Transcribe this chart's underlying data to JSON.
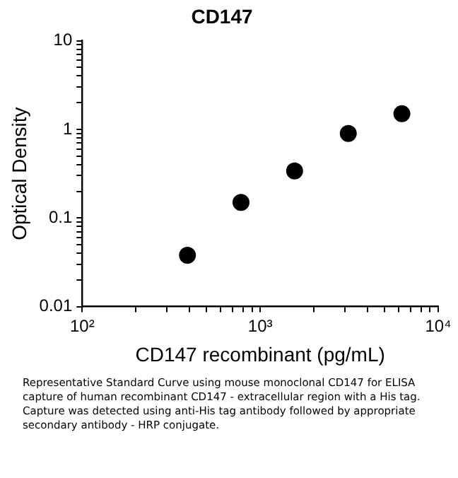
{
  "chart_data": {
    "type": "scatter",
    "title": "CD147",
    "xlabel": "CD147 recombinant (pg/mL)",
    "ylabel": "Optical Density",
    "log": "xy",
    "grid": false,
    "marker": "circle",
    "xlim": [
      100,
      10000
    ],
    "xticks": [
      {
        "value": 100,
        "label": "10²"
      },
      {
        "value": 200,
        "label": null
      },
      {
        "value": 300,
        "label": null
      },
      {
        "value": 400,
        "label": null
      },
      {
        "value": 500,
        "label": null
      },
      {
        "value": 600,
        "label": null
      },
      {
        "value": 700,
        "label": null
      },
      {
        "value": 800,
        "label": null
      },
      {
        "value": 900,
        "label": null
      },
      {
        "value": 1000,
        "label": "10³"
      },
      {
        "value": 2000,
        "label": null
      },
      {
        "value": 3000,
        "label": null
      },
      {
        "value": 4000,
        "label": null
      },
      {
        "value": 5000,
        "label": null
      },
      {
        "value": 6000,
        "label": null
      },
      {
        "value": 7000,
        "label": null
      },
      {
        "value": 8000,
        "label": null
      },
      {
        "value": 9000,
        "label": null
      },
      {
        "value": 10000,
        "label": "10⁴"
      }
    ],
    "ylim": [
      0.01,
      10
    ],
    "yticks": [
      0.01,
      {
        "value": 0.02,
        "label": null
      },
      {
        "value": 0.03,
        "label": null
      },
      {
        "value": 0.04,
        "label": null
      },
      {
        "value": 0.05,
        "label": null
      },
      {
        "value": 0.06,
        "label": null
      },
      {
        "value": 0.07,
        "label": null
      },
      {
        "value": 0.08,
        "label": null
      },
      {
        "value": 0.09,
        "label": null
      },
      0.1,
      {
        "value": 0.2,
        "label": null
      },
      {
        "value": 0.3,
        "label": null
      },
      {
        "value": 0.4,
        "label": null
      },
      {
        "value": 0.5,
        "label": null
      },
      {
        "value": 0.6,
        "label": null
      },
      {
        "value": 0.7,
        "label": null
      },
      {
        "value": 0.8,
        "label": null
      },
      {
        "value": 0.9,
        "label": null
      },
      1,
      {
        "value": 2,
        "label": null
      },
      {
        "value": 3,
        "label": null
      },
      {
        "value": 4,
        "label": null
      },
      {
        "value": 5,
        "label": null
      },
      {
        "value": 6,
        "label": null
      },
      {
        "value": 7,
        "label": null
      },
      {
        "value": 8,
        "label": null
      },
      {
        "value": 9,
        "label": null
      },
      10
    ],
    "series": [
      {
        "color": "#000000",
        "x": [
          390,
          780,
          1560,
          3125,
          6250
        ],
        "values": [
          0.038,
          0.15,
          0.34,
          0.9,
          1.5
        ]
      }
    ],
    "annotations": [
      "Representative Standard Curve using mouse monoclonal CD147 for ELISA capture of human recombinant CD147 - extracellular region with a His tag. Capture was detected using anti-His tag antibody followed by appropriate secondary antibody - HRP conjugate."
    ]
  }
}
